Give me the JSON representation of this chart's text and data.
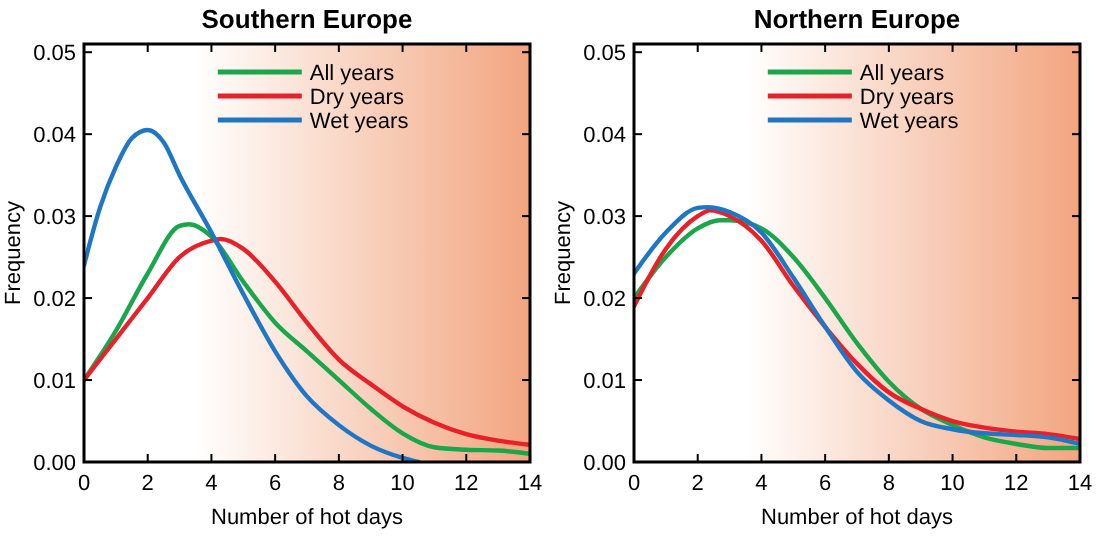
{
  "chart_data": [
    {
      "type": "line",
      "title": "Southern Europe",
      "xlabel": "Number of hot days",
      "ylabel": "Frequency",
      "xlim": [
        0,
        14
      ],
      "xticks": [
        0,
        2,
        4,
        6,
        8,
        10,
        12,
        14
      ],
      "ylim": [
        0,
        0.051
      ],
      "yticks": [
        {
          "value": 0,
          "label": "0.00"
        },
        {
          "value": 0.01,
          "label": "0.01"
        },
        {
          "value": 0.02,
          "label": "0.02"
        },
        {
          "value": 0.03,
          "label": "0.03"
        },
        {
          "value": 0.04,
          "label": "0.04"
        },
        {
          "value": 0.05,
          "label": "0.05"
        }
      ],
      "legend": "top",
      "series": [
        {
          "name": "All years",
          "color": "#1aa64a",
          "x": [
            0,
            1,
            2,
            3,
            3.3,
            4,
            5,
            6,
            7,
            8,
            9,
            10,
            11,
            12,
            13,
            14
          ],
          "values": [
            0.01,
            0.016,
            0.023,
            0.0288,
            0.029,
            0.0275,
            0.022,
            0.017,
            0.0135,
            0.01,
            0.0065,
            0.0035,
            0.0018,
            0.0015,
            0.0014,
            0.001
          ]
        },
        {
          "name": "Dry years",
          "color": "#e8202a",
          "x": [
            0,
            1,
            2,
            3,
            4,
            4.3,
            5,
            6,
            7,
            8,
            9,
            10,
            11,
            12,
            13,
            14
          ],
          "values": [
            0.01,
            0.015,
            0.02,
            0.025,
            0.027,
            0.0272,
            0.026,
            0.022,
            0.017,
            0.0125,
            0.0095,
            0.0068,
            0.0048,
            0.0034,
            0.0026,
            0.0021
          ]
        },
        {
          "name": "Wet years",
          "color": "#1f77c4",
          "x": [
            0,
            0.5,
            1,
            1.5,
            2,
            2.5,
            3,
            4,
            5,
            6,
            7,
            8,
            9,
            10,
            10.5
          ],
          "values": [
            0.024,
            0.031,
            0.036,
            0.0395,
            0.0405,
            0.039,
            0.035,
            0.028,
            0.0205,
            0.0135,
            0.008,
            0.0045,
            0.002,
            0.0005,
            0
          ]
        }
      ]
    },
    {
      "type": "line",
      "title": "Northern Europe",
      "xlabel": "Number of hot days",
      "ylabel": "Frequency",
      "xlim": [
        0,
        14
      ],
      "xticks": [
        0,
        2,
        4,
        6,
        8,
        10,
        12,
        14
      ],
      "ylim": [
        0,
        0.051
      ],
      "yticks": [
        {
          "value": 0,
          "label": "0.00"
        },
        {
          "value": 0.01,
          "label": "0.01"
        },
        {
          "value": 0.02,
          "label": "0.02"
        },
        {
          "value": 0.03,
          "label": "0.03"
        },
        {
          "value": 0.04,
          "label": "0.04"
        },
        {
          "value": 0.05,
          "label": "0.05"
        }
      ],
      "legend": "top",
      "series": [
        {
          "name": "All years",
          "color": "#1aa64a",
          "x": [
            0,
            1,
            2,
            2.7,
            3,
            4,
            5,
            6,
            7,
            8,
            9,
            10,
            11,
            12,
            13,
            14
          ],
          "values": [
            0.02,
            0.025,
            0.0285,
            0.0295,
            0.0295,
            0.0285,
            0.025,
            0.02,
            0.0145,
            0.0098,
            0.0065,
            0.0045,
            0.003,
            0.0022,
            0.0017,
            0.0017
          ]
        },
        {
          "name": "Dry years",
          "color": "#e8202a",
          "x": [
            0,
            1,
            2,
            2.4,
            3,
            4,
            5,
            6,
            7,
            8,
            9,
            10,
            11,
            12,
            13,
            14
          ],
          "values": [
            0.019,
            0.026,
            0.03,
            0.0307,
            0.03,
            0.027,
            0.0215,
            0.0165,
            0.012,
            0.0085,
            0.0065,
            0.005,
            0.0042,
            0.0037,
            0.0034,
            0.0028
          ]
        },
        {
          "name": "Wet years",
          "color": "#1f77c4",
          "x": [
            0,
            1,
            2,
            2.3,
            3,
            4,
            5,
            6,
            7,
            8,
            9,
            10,
            11,
            12,
            13,
            14
          ],
          "values": [
            0.023,
            0.028,
            0.031,
            0.0311,
            0.0305,
            0.028,
            0.0225,
            0.0165,
            0.011,
            0.0075,
            0.005,
            0.004,
            0.0035,
            0.0033,
            0.003,
            0.0022
          ]
        }
      ]
    }
  ]
}
